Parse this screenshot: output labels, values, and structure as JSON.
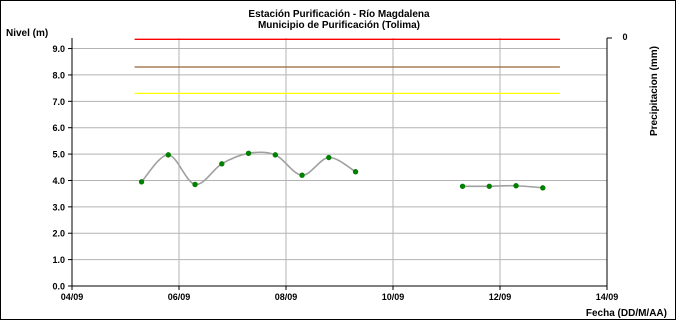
{
  "chart_data": {
    "type": "line",
    "title": "Estación Purificación - Río Magdalena",
    "subtitle": "Municipio de Purificación (Tolima)",
    "ylabel": "Nivel (m)",
    "y2label": "Precipitacion (mm)",
    "xlabel": "Fecha (DD/M/AA)",
    "ylim": [
      0,
      9.4
    ],
    "yticks": [
      "0.0",
      "1.0",
      "2.0",
      "3.0",
      "4.0",
      "5.0",
      "6.0",
      "7.0",
      "8.0",
      "9.0"
    ],
    "y2ticks": [
      "0"
    ],
    "xlim": [
      0,
      10
    ],
    "xticks": [
      {
        "x": 0,
        "label": "04/09"
      },
      {
        "x": 2,
        "label": "06/09"
      },
      {
        "x": 4,
        "label": "08/09"
      },
      {
        "x": 6,
        "label": "10/09"
      },
      {
        "x": 8,
        "label": "12/09"
      },
      {
        "x": 10,
        "label": "14/09"
      }
    ],
    "grid": true,
    "thresholds": [
      {
        "value": 9.35,
        "color": "#ff0000"
      },
      {
        "value": 8.3,
        "color": "#996633"
      },
      {
        "value": 7.3,
        "color": "#ffff00"
      }
    ],
    "series": [
      {
        "line_color": "#a0a0a0",
        "marker_color": "#008000",
        "segments": [
          [
            [
              1.3,
              3.95
            ],
            [
              1.8,
              4.97
            ],
            [
              2.3,
              3.85
            ],
            [
              2.8,
              4.63
            ],
            [
              3.3,
              5.03
            ],
            [
              3.8,
              4.97
            ],
            [
              4.3,
              4.2
            ],
            [
              4.8,
              4.87
            ],
            [
              5.3,
              4.33
            ]
          ],
          [
            [
              7.3,
              3.78
            ],
            [
              7.8,
              3.78
            ],
            [
              8.3,
              3.8
            ],
            [
              8.8,
              3.72
            ]
          ]
        ]
      }
    ]
  }
}
